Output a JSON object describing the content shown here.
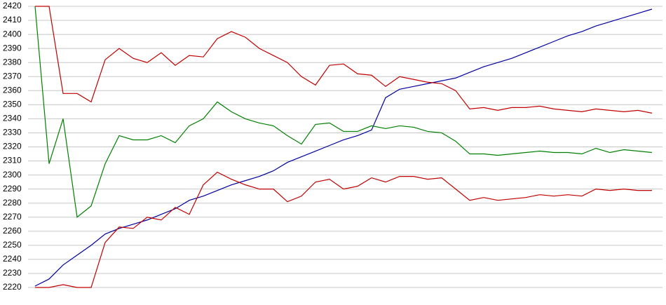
{
  "chart_data": {
    "type": "line",
    "categories": [
      null,
      null,
      null,
      null,
      null,
      null,
      null,
      null,
      null,
      null,
      null,
      null,
      null,
      null,
      null,
      null,
      null,
      null,
      null,
      null,
      null,
      null,
      null,
      null,
      null,
      null,
      null,
      null,
      null,
      null,
      null,
      null,
      null,
      null,
      null,
      null,
      null,
      null,
      null,
      null,
      null,
      null,
      null,
      null,
      null
    ],
    "series": [
      {
        "color": "#0000a0",
        "values": [
          2221,
          2226,
          2236,
          2243,
          2250,
          2258,
          2262,
          2265,
          2268,
          2272,
          2276,
          2282,
          2285,
          2289,
          2293,
          2296,
          2299,
          2303,
          2309,
          2313,
          2317,
          2321,
          2325,
          2328,
          2332,
          2355,
          2361,
          2363,
          2365,
          2367,
          2369,
          2373,
          2377,
          2380,
          2383,
          2387,
          2391,
          2395,
          2399,
          2402,
          2406,
          2409,
          2412,
          2415,
          2418
        ]
      },
      {
        "color": "#c00000",
        "values": [
          2420,
          2420,
          2358,
          2358,
          2352,
          2382,
          2390,
          2383,
          2380,
          2387,
          2378,
          2385,
          2384,
          2397,
          2402,
          2398,
          2390,
          2385,
          2380,
          2370,
          2364,
          2378,
          2379,
          2372,
          2371,
          2363,
          2370,
          2368,
          2366,
          2365,
          2360,
          2347,
          2348,
          2346,
          2348,
          2348,
          2349,
          2347,
          2346,
          2345,
          2347,
          2346,
          2345,
          2346,
          2344
        ]
      },
      {
        "color": "#008000",
        "values": [
          2420,
          2308,
          2340,
          2270,
          2278,
          2308,
          2328,
          2325,
          2325,
          2328,
          2323,
          2335,
          2340,
          2352,
          2345,
          2340,
          2337,
          2335,
          2328,
          2322,
          2336,
          2337,
          2331,
          2331,
          2335,
          2333,
          2335,
          2334,
          2331,
          2330,
          2324,
          2315,
          2315,
          2314,
          2315,
          2316,
          2317,
          2316,
          2316,
          2315,
          2319,
          2316,
          2318,
          2317,
          2316
        ]
      },
      {
        "color": "#c00000",
        "values": [
          2220,
          2220,
          2222,
          2220,
          2220,
          2252,
          2263,
          2262,
          2270,
          2268,
          2277,
          2272,
          2293,
          2302,
          2297,
          2293,
          2290,
          2290,
          2281,
          2285,
          2295,
          2297,
          2290,
          2292,
          2298,
          2295,
          2299,
          2299,
          2297,
          2298,
          2290,
          2282,
          2284,
          2282,
          2283,
          2284,
          2286,
          2285,
          2286,
          2285,
          2290,
          2289,
          2290,
          2289,
          2289
        ]
      }
    ],
    "ylim": [
      2220,
      2420
    ],
    "yticks": [
      2220,
      2230,
      2240,
      2250,
      2260,
      2270,
      2280,
      2290,
      2300,
      2310,
      2320,
      2330,
      2340,
      2350,
      2360,
      2370,
      2380,
      2390,
      2400,
      2410,
      2420
    ],
    "grid": true
  }
}
